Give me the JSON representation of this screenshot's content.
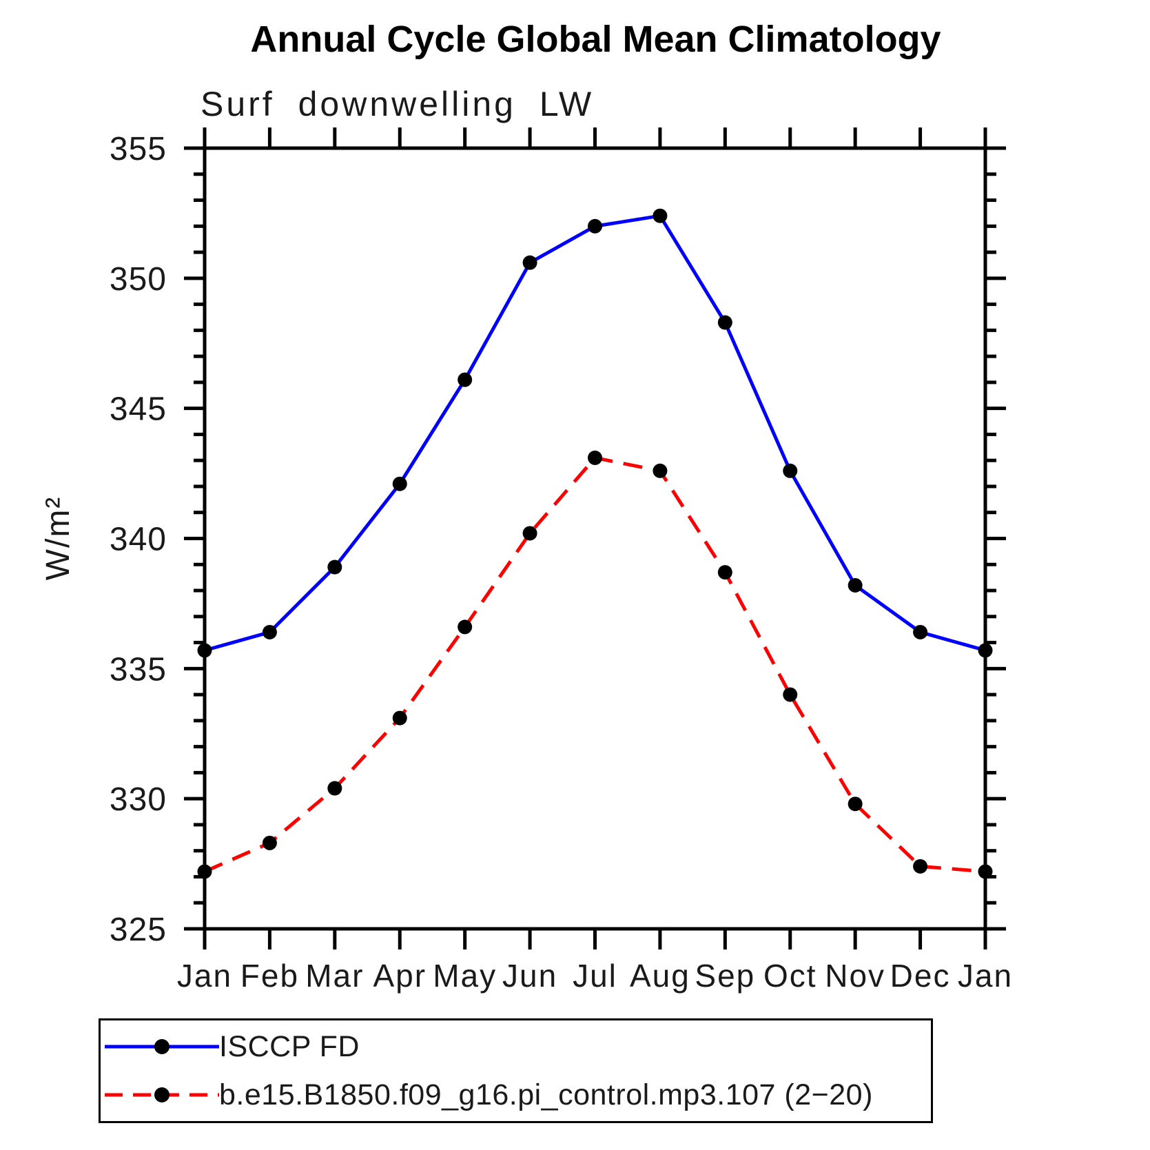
{
  "title": "Annual Cycle Global Mean Climatology",
  "subtitle": "Surf downwelling LW",
  "legend": {
    "entries": [
      {
        "label": "ISCCP FD",
        "color": "#0000ff",
        "style": "solid",
        "marker_color": "#000000"
      },
      {
        "label": "b.e15.B1850.f09_g16.pi_control.mp3.107 (2−20)",
        "color": "#ff0000",
        "style": "dashed",
        "marker_color": "#000000"
      }
    ]
  },
  "colors": {
    "axis": "#000000",
    "marker": "#000000",
    "series_observation": "#0000ff",
    "series_model": "#ff0000",
    "background": "#ffffff"
  },
  "chart_data": {
    "type": "line",
    "title": "Annual Cycle Global Mean Climatology",
    "subtitle": "Surf downwelling LW",
    "xlabel": "",
    "ylabel": "W/m²",
    "categories": [
      "Jan",
      "Feb",
      "Mar",
      "Apr",
      "May",
      "Jun",
      "Jul",
      "Aug",
      "Sep",
      "Oct",
      "Nov",
      "Dec",
      "Jan"
    ],
    "ylim": [
      325,
      355
    ],
    "ytick_major_step": 5,
    "ytick_minor_step": 1,
    "yticks_major": [
      325,
      330,
      335,
      340,
      345,
      350,
      355
    ],
    "grid": false,
    "legend_position": "bottom-left",
    "series": [
      {
        "name": "ISCCP FD",
        "color": "#0000ff",
        "line_style": "solid",
        "marker": "filled-circle",
        "marker_color": "#000000",
        "values": [
          335.7,
          336.4,
          338.9,
          342.1,
          346.1,
          350.6,
          352.0,
          352.4,
          348.3,
          342.6,
          338.2,
          336.4,
          335.7
        ]
      },
      {
        "name": "b.e15.B1850.f09_g16.pi_control.mp3.107 (2−20)",
        "color": "#ff0000",
        "line_style": "dashed",
        "marker": "filled-circle",
        "marker_color": "#000000",
        "values": [
          327.2,
          328.3,
          330.4,
          333.1,
          336.6,
          340.2,
          343.1,
          342.6,
          338.7,
          334.0,
          329.8,
          327.4,
          327.2
        ]
      }
    ]
  }
}
